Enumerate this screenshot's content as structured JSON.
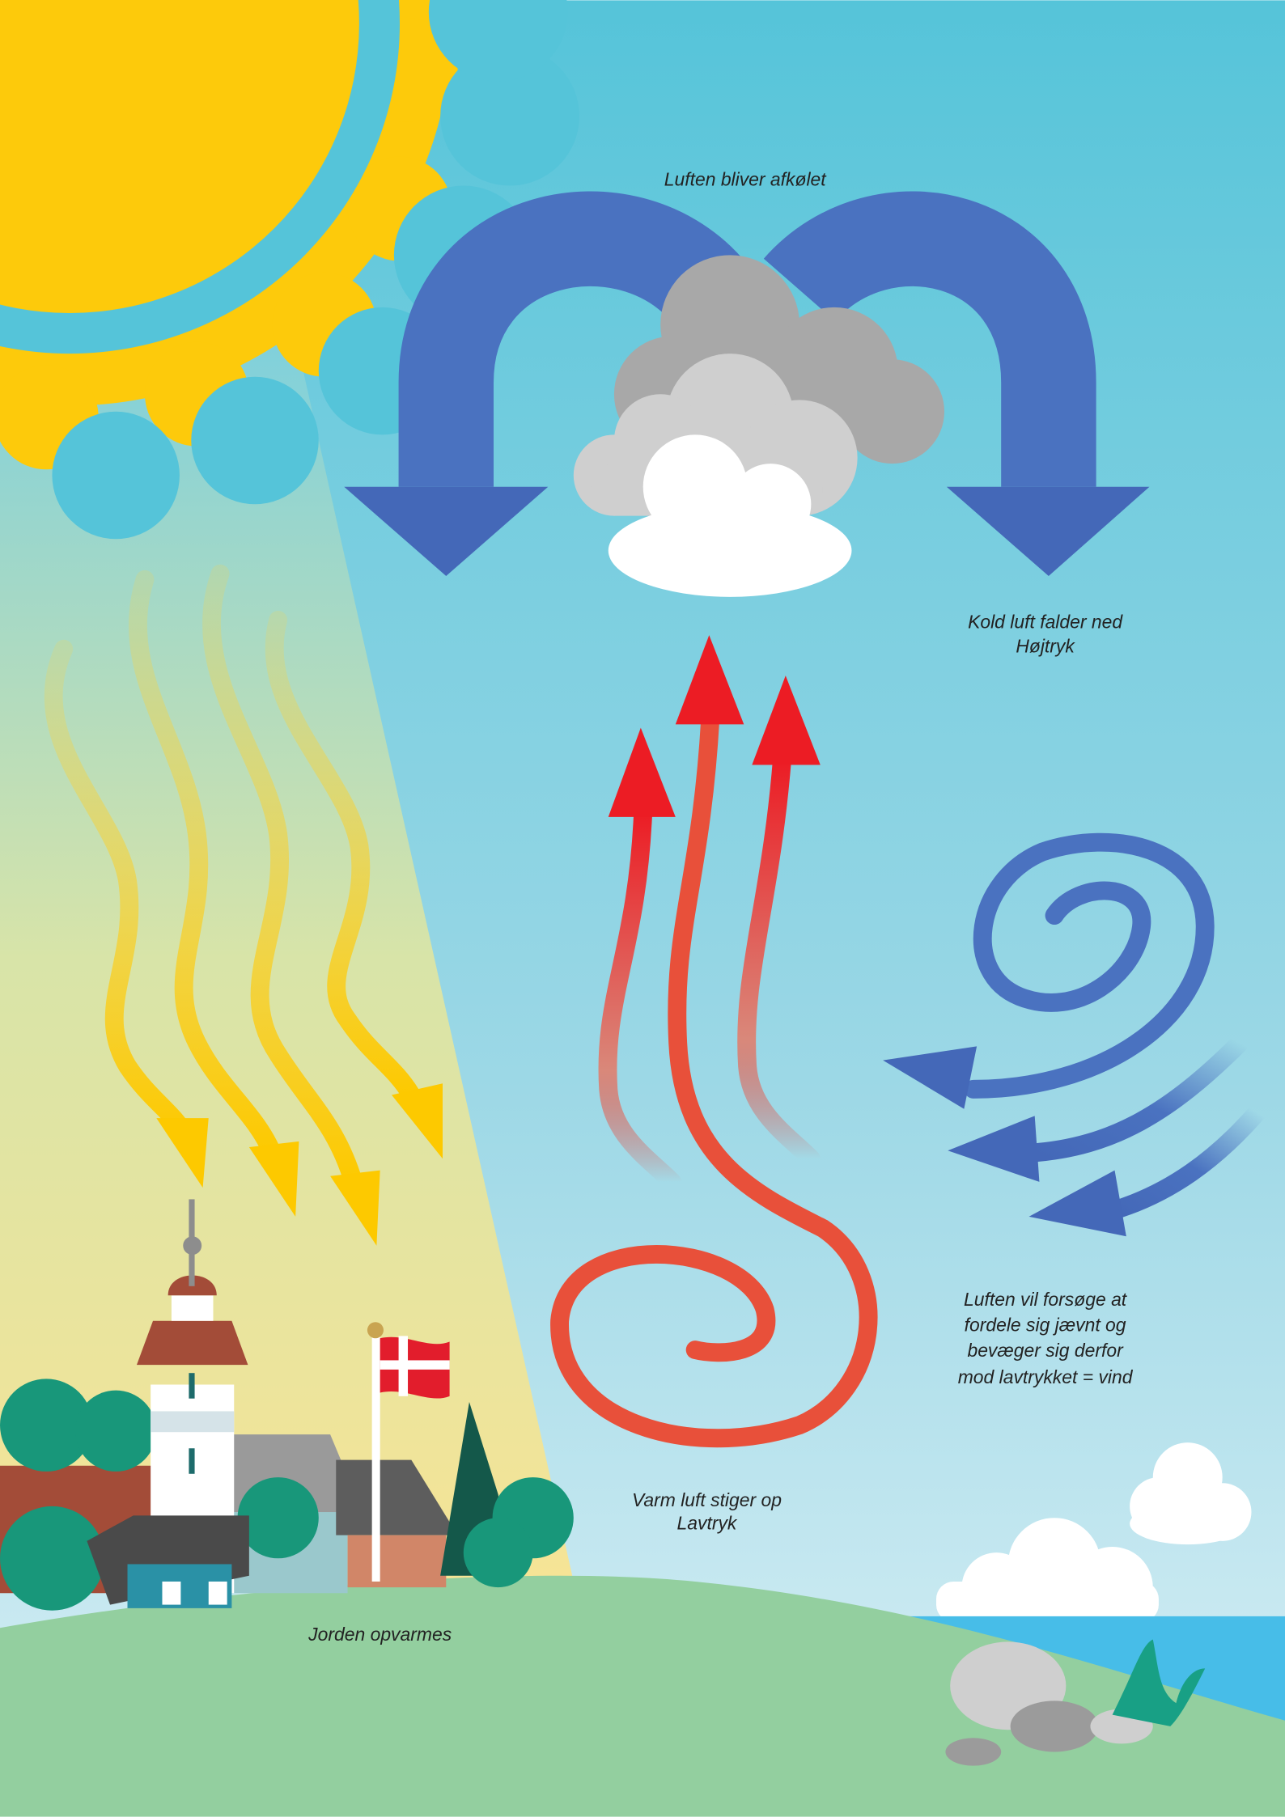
{
  "labels": {
    "cooling": "Luften bliver afkølet",
    "high_pressure": [
      "Kold luft falder ned",
      "Højtryk"
    ],
    "wind": [
      "Luften vil forsøge at",
      "fordele sig jævnt og",
      "bevæger sig derfor",
      "mod lavtrykket = vind"
    ],
    "low_pressure": [
      "Varm luft stiger op",
      "Lavtryk"
    ],
    "earth": "Jorden opvarmes"
  }
}
